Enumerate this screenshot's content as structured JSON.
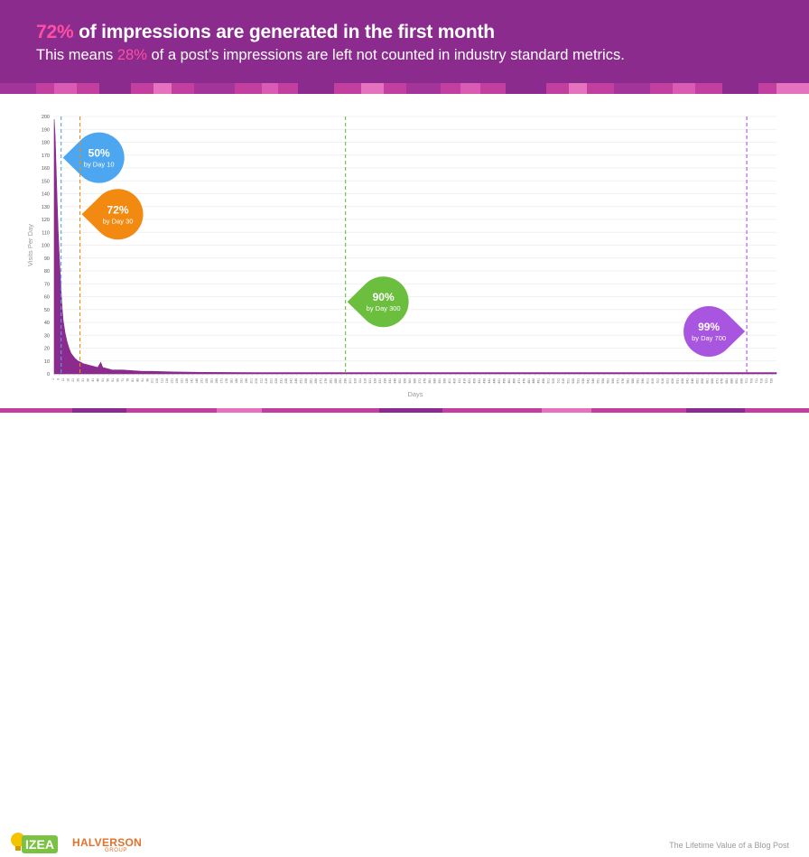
{
  "header": {
    "headline_pct": "72%",
    "headline_rest": " of impressions are generated in the first month",
    "sub_pre": "This means ",
    "sub_pct": "28%",
    "sub_post": " of a post’s impressions are left not counted in industry standard metrics."
  },
  "colors": {
    "header_bg": "#8a2b8d",
    "highlight": "#ff4fa3",
    "area": "#8a2b8d",
    "blue": "#4da6f0",
    "orange": "#f28a12",
    "green": "#6cbe3f",
    "purple": "#a855e0"
  },
  "chart_data": {
    "type": "area",
    "title": "",
    "xlabel": "Days",
    "ylabel": "Visits Per Day",
    "ylim": [
      0,
      200
    ],
    "yticks": [
      0,
      10,
      20,
      30,
      40,
      50,
      60,
      70,
      80,
      90,
      100,
      110,
      120,
      130,
      140,
      150,
      160,
      170,
      180,
      190,
      200
    ],
    "xlim": [
      1,
      730
    ],
    "grid": true,
    "series": [
      {
        "x": [
          1,
          2,
          3,
          4,
          5,
          6,
          7,
          8,
          9,
          10,
          12,
          14,
          16,
          18,
          20,
          22,
          25,
          28,
          30,
          35,
          40,
          45,
          48,
          50,
          55,
          60,
          70,
          80,
          90,
          100,
          120,
          150,
          200,
          300,
          400,
          500,
          600,
          700,
          730
        ],
        "y": [
          198,
          185,
          160,
          135,
          112,
          95,
          80,
          65,
          52,
          42,
          32,
          25,
          20,
          16,
          14,
          12,
          10,
          9,
          8,
          7,
          6,
          5,
          9,
          5,
          4,
          3,
          3,
          2.5,
          2,
          2,
          1.5,
          1.2,
          1,
          1,
          1,
          1,
          1,
          1,
          1
        ]
      }
    ],
    "markers": [
      {
        "day": 8,
        "pct": "50%",
        "label": "by Day 10",
        "color": "#4da6f0",
        "y": 168
      },
      {
        "day": 27,
        "pct": "72%",
        "label": "by Day 30",
        "color": "#f28a12",
        "y": 124
      },
      {
        "day": 295,
        "pct": "90%",
        "label": "by Day 300",
        "color": "#6cbe3f",
        "y": 56
      },
      {
        "day": 700,
        "pct": "99%",
        "label": "by Day 700",
        "color": "#a855e0",
        "y": 33
      }
    ]
  },
  "footer": {
    "logo_izea": "IZEA",
    "logo_halverson": "HALVERSON",
    "logo_group": "GROUP",
    "title": "The Lifetime Value of a Blog Post"
  }
}
